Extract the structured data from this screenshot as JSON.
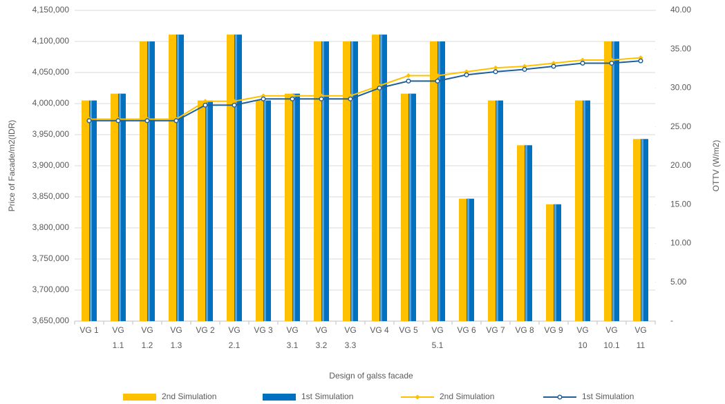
{
  "chart_data": {
    "type": "bar",
    "xlabel": "Design of galss facade",
    "ylabel": "Price of Facade/m2(IDR)",
    "y2label": "OTTV (W/m2)",
    "categories": [
      "VG 1",
      "VG 1.1",
      "VG 1.2",
      "VG 1.3",
      "VG 2",
      "VG 2.1",
      "VG 3",
      "VG 3.1",
      "VG 3.2",
      "VG 3.3",
      "VG 4",
      "VG 5",
      "VG 5.1",
      "VG 6",
      "VG 7",
      "VG 8",
      "VG 9",
      "VG 10",
      "VG 10.1",
      "VG 11"
    ],
    "series": [
      {
        "name": "2nd Simulation",
        "type": "bar",
        "color": "#ffc000",
        "values": [
          4005000,
          4016000,
          4100000,
          4111000,
          4005000,
          4111000,
          4005000,
          4016000,
          4100000,
          4100000,
          4111000,
          4016000,
          4100000,
          3847000,
          4005000,
          3933000,
          3838000,
          4005000,
          4100000,
          3943000
        ]
      },
      {
        "name": "1st Simulation",
        "type": "bar",
        "color": "#0070c0",
        "values": [
          4005000,
          4016000,
          4100000,
          4111000,
          4005000,
          4111000,
          4005000,
          4016000,
          4100000,
          4100000,
          4111000,
          4016000,
          4100000,
          3847000,
          4005000,
          3933000,
          3838000,
          4005000,
          4100000,
          3943000
        ]
      },
      {
        "name": "2nd Simulation",
        "type": "line",
        "axis": "y2",
        "color": "#ffc000",
        "values": [
          26.0,
          26.0,
          26.0,
          26.0,
          28.3,
          28.3,
          29.0,
          29.0,
          29.0,
          29.0,
          30.3,
          31.6,
          31.6,
          32.1,
          32.6,
          32.8,
          33.2,
          33.6,
          33.6,
          33.9
        ]
      },
      {
        "name": "1st Simulation",
        "type": "line",
        "axis": "y2",
        "color": "#1f5f99",
        "values": [
          25.8,
          25.8,
          25.8,
          25.8,
          27.8,
          27.8,
          28.6,
          28.6,
          28.6,
          28.6,
          30.0,
          30.9,
          30.9,
          31.7,
          32.1,
          32.4,
          32.8,
          33.2,
          33.2,
          33.5
        ]
      }
    ],
    "ylim": [
      3650000,
      4150000
    ],
    "yticks": [
      {
        "value": 3650000,
        "label": "3,650,000"
      },
      {
        "value": 3700000,
        "label": "3,700,000"
      },
      {
        "value": 3750000,
        "label": "3,750,000"
      },
      {
        "value": 3800000,
        "label": "3,800,000"
      },
      {
        "value": 3850000,
        "label": "3,850,000"
      },
      {
        "value": 3900000,
        "label": "3,900,000"
      },
      {
        "value": 3950000,
        "label": "3,950,000"
      },
      {
        "value": 4000000,
        "label": "4,000,000"
      },
      {
        "value": 4050000,
        "label": "4,050,000"
      },
      {
        "value": 4100000,
        "label": "4,100,000"
      },
      {
        "value": 4150000,
        "label": "4,150,000"
      }
    ],
    "y2lim": [
      0,
      40
    ],
    "y2ticks": [
      {
        "value": 0,
        "label": "-"
      },
      {
        "value": 5,
        "label": "5.00"
      },
      {
        "value": 10,
        "label": "10.00"
      },
      {
        "value": 15,
        "label": "15.00"
      },
      {
        "value": 20,
        "label": "20.00"
      },
      {
        "value": 25,
        "label": "25.00"
      },
      {
        "value": 30,
        "label": "30.00"
      },
      {
        "value": 35,
        "label": "35.00"
      },
      {
        "value": 40,
        "label": "40.00"
      }
    ],
    "grid": true,
    "legend": "bottom"
  }
}
